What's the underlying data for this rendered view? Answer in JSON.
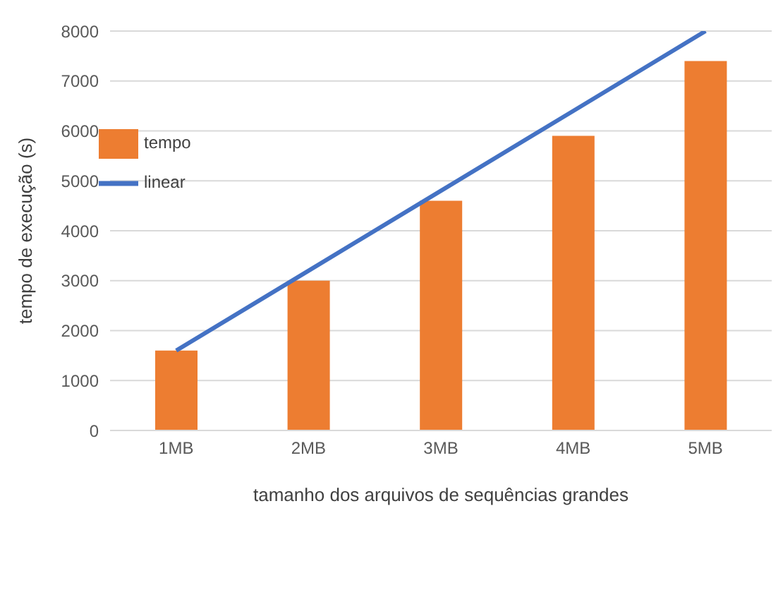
{
  "chart_data": {
    "type": "bar",
    "xlabel": "tamanho dos arquivos de sequências grandes",
    "ylabel": "tempo de execução (s)",
    "categories": [
      "1MB",
      "2MB",
      "3MB",
      "4MB",
      "5MB"
    ],
    "series": [
      {
        "name": "tempo",
        "color": "#ed7d31",
        "values": [
          1600,
          3000,
          4600,
          5900,
          7400
        ]
      },
      {
        "name": "linear",
        "type": "line",
        "color": "#4472c4",
        "values": [
          1600,
          3200,
          4800,
          6400,
          8000
        ]
      }
    ],
    "ylim": [
      0,
      8000
    ],
    "yticks": [
      0,
      1000,
      2000,
      3000,
      4000,
      5000,
      6000,
      7000,
      8000
    ],
    "grid": "y",
    "legend": "top left",
    "marker": "none",
    "line_style": "solid"
  }
}
